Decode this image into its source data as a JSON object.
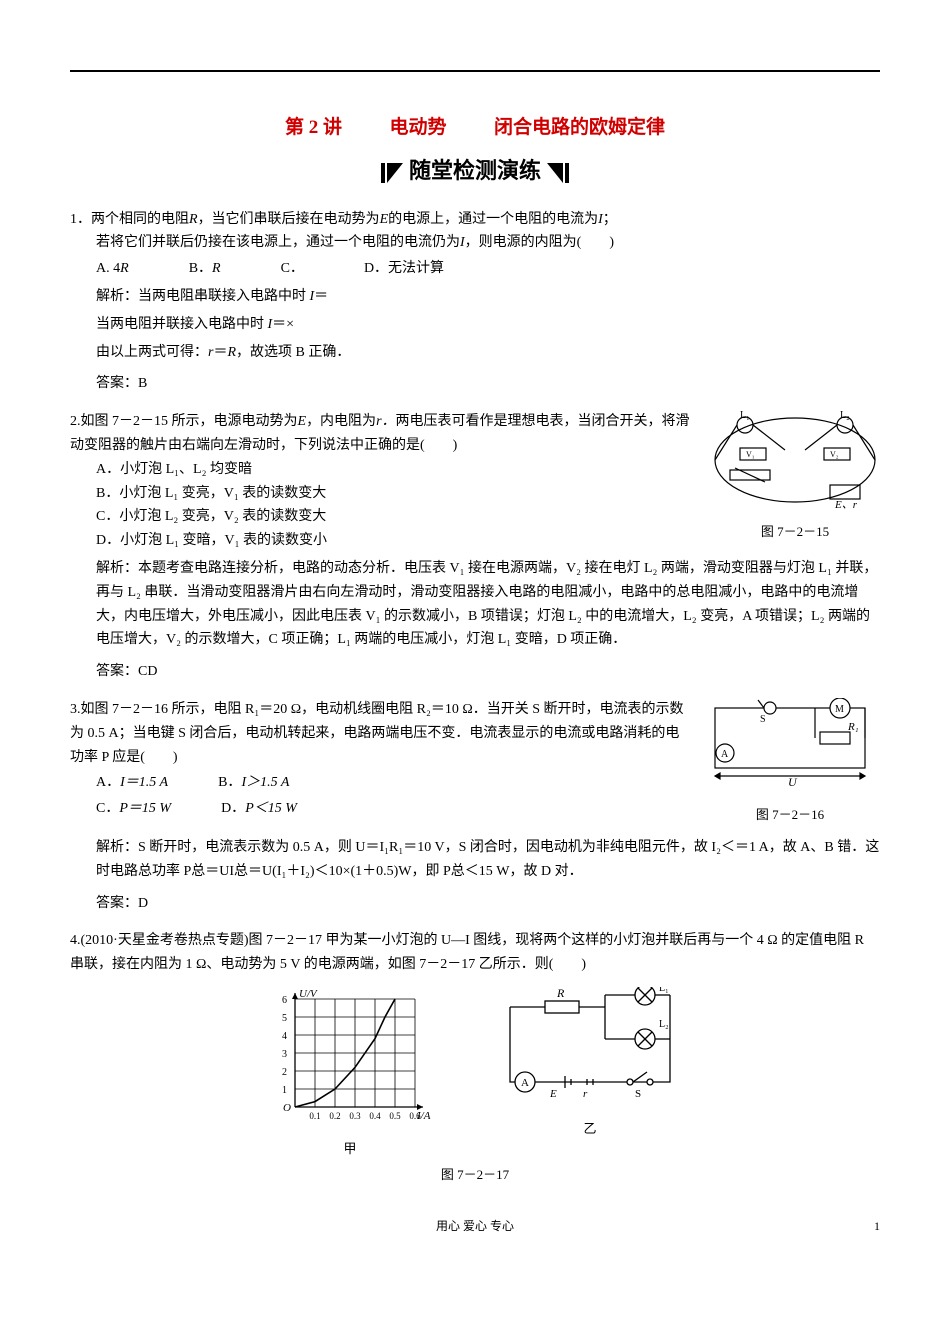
{
  "header": {
    "lecture_label": "第 2 讲",
    "topic1": "电动势",
    "topic2": "闭合电路的欧姆定律",
    "banner": "随堂检测演练"
  },
  "q1": {
    "num": "1．",
    "text1": "两个相同的电阻",
    "R": "R",
    "text2": "，当它们串联后接在电动势为",
    "E": "E",
    "text3": "的电源上，通过一个电阻的电流为",
    "I": "I",
    "text4": "；",
    "line2a": "若将它们并联后仍接在该电源上，通过一个电阻的电流仍为",
    "line2b": "，则电源的内阻为(　　)",
    "optA": "A. 4",
    "optB": "B．",
    "optC": "C．",
    "optD": "D．无法计算",
    "ana1": "解析：当两电阻串联接入电路中时 ",
    "ana1b": "＝",
    "ana2": "当两电阻并联接入电路中时 ",
    "ana2b": "＝×",
    "ana3a": "由以上两式可得：",
    "ana3b": "＝",
    "ana3c": "，故选项 B 正确．",
    "ans_label": "答案：",
    "ans": "B"
  },
  "q2": {
    "num": "2.",
    "text1": "如图 7－2－15 所示，电源电动势为",
    "text2": "，内电阻为",
    "text3": "两电压表可看作是理想电表，当闭合开关，将滑动变阻器的触片由右端向左滑动时，下列说法中正确的是(　　)",
    "A": "A．小灯泡 L₁、L₂ 均变暗",
    "B": "B．小灯泡 L₁ 变亮，V₁ 表的读数变大",
    "C": "C．小灯泡 L₂ 变亮，V₂ 表的读数变大",
    "D": "D．小灯泡 L₁ 变暗，V₁ 表的读数变小",
    "fig_caption": "图 7－2－15",
    "ana": "解析：本题考查电路连接分析，电路的动态分析．电压表 V₁ 接在电源两端，V₂ 接在电灯 L₂ 两端，滑动变阻器与灯泡 L₁ 并联，再与 L₂ 串联．当滑动变阻器滑片由右向左滑动时，滑动变阻器接入电路的电阻减小，电路中的总电阻减小，电路中的电流增大，内电压增大，外电压减小，因此电压表 V₁ 的示数减小，B 项错误；灯泡 L₂ 中的电流增大，L₂ 变亮，A 项错误；L₂ 两端的电压增大，V₂ 的示数增大，C 项正确；L₁ 两端的电压减小，灯泡 L₁ 变暗，D 项正确．",
    "ans_label": "答案：",
    "ans": "CD"
  },
  "q3": {
    "num": "3.",
    "text": "如图 7－2－16 所示，电阻 R₁＝20 Ω，电动机线圈电阻 R₂＝10 Ω．当开关 S 断开时，电流表的示数为 0.5 A；当电键 S 闭合后，电动机转起来，电路两端电压不变．电流表显示的电流或电路消耗的电功率 P 应是(　　)",
    "A_label": "A．",
    "A_val": "I＝1.5 A",
    "B_label": "B．",
    "B_val": "I＞1.5 A",
    "C_label": "C．",
    "C_val": "P＝15 W",
    "D_label": "D．",
    "D_val": "P＜15 W",
    "fig_caption": "图 7－2－16",
    "ana": "解析：S 断开时，电流表示数为 0.5 A，则 U＝I₁R₁＝10 V，S 闭合时，因电动机为非纯电阻元件，故 I₂＜＝1 A，故 A、B 错．这时电路总功率 P总＝UI总＝U(I₁＋I₂)＜10×(1＋0.5)W，即 P总＜15 W，故 D 对．",
    "ans_label": "答案：",
    "ans": "D"
  },
  "q4": {
    "num": "4.",
    "src": "(2010·天星金考卷热点专题)",
    "text": "图 7－2－17 甲为某一小灯泡的 U—I 图线，现将两个这样的小灯泡并联后再与一个 4 Ω 的定值电阻 R 串联，接在内阻为 1 Ω、电动势为 5 V 的电源两端，如图 7－2－17 乙所示．则(　　)",
    "chart": {
      "type": "line",
      "x_label": "I/A",
      "y_label": "U/V",
      "x_ticks": [
        "0.1",
        "0.2",
        "0.3",
        "0.4",
        "0.5",
        "0.6"
      ],
      "y_ticks": [
        "1",
        "2",
        "3",
        "4",
        "5",
        "6"
      ],
      "grid_color": "#000",
      "bg_color": "#ffffff",
      "curve_points": [
        [
          0,
          0
        ],
        [
          0.1,
          0.3
        ],
        [
          0.2,
          1.0
        ],
        [
          0.3,
          2.2
        ],
        [
          0.4,
          3.8
        ],
        [
          0.45,
          5.0
        ],
        [
          0.5,
          6.0
        ]
      ]
    },
    "caption_left": "甲",
    "caption_right": "乙",
    "fig_caption": "图 7－2－17"
  },
  "footer": {
    "motto": "用心 爱心 专心",
    "page": "1"
  }
}
